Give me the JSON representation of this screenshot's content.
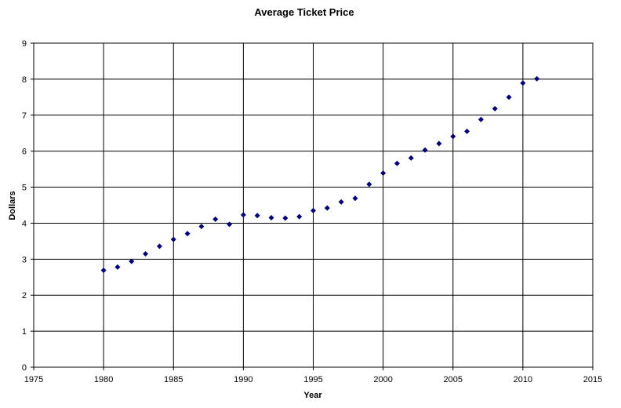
{
  "chart_data": {
    "type": "scatter",
    "title": "Average Ticket Price",
    "xlabel": "Year",
    "ylabel": "Dollars",
    "xlim": [
      1975,
      2015
    ],
    "ylim": [
      0,
      9
    ],
    "x_ticks": [
      1975,
      1980,
      1985,
      1990,
      1995,
      2000,
      2005,
      2010,
      2015
    ],
    "y_ticks": [
      0,
      1,
      2,
      3,
      4,
      5,
      6,
      7,
      8,
      9
    ],
    "grid": true,
    "legend": "none",
    "marker": "diamond",
    "marker_color": "#000080",
    "series": [
      {
        "x": [
          1980,
          1981,
          1982,
          1983,
          1984,
          1985,
          1986,
          1987,
          1988,
          1989,
          1990,
          1991,
          1992,
          1993,
          1994,
          1995,
          1996,
          1997,
          1998,
          1999,
          2000,
          2001,
          2002,
          2003,
          2004,
          2005,
          2006,
          2007,
          2008,
          2009,
          2010,
          2011
        ],
        "y": [
          2.69,
          2.78,
          2.94,
          3.15,
          3.36,
          3.55,
          3.71,
          3.91,
          4.11,
          3.97,
          4.23,
          4.21,
          4.15,
          4.14,
          4.18,
          4.35,
          4.42,
          4.59,
          4.69,
          5.08,
          5.39,
          5.66,
          5.81,
          6.03,
          6.21,
          6.41,
          6.55,
          6.88,
          7.18,
          7.5,
          7.89,
          8.01
        ]
      }
    ]
  }
}
